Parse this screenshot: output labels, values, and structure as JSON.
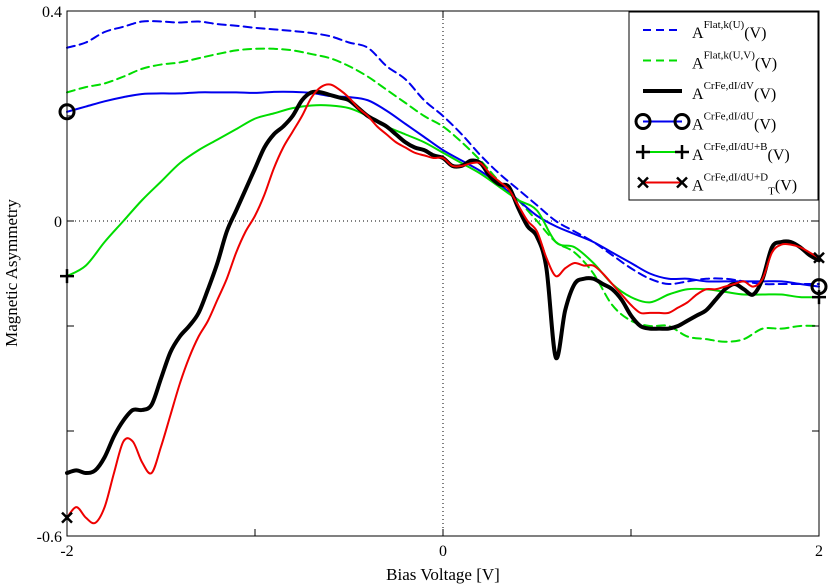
{
  "chart_data": {
    "type": "line",
    "title": "",
    "xlabel": "Bias Voltage [V]",
    "ylabel": "Magnetic Asymmetry",
    "xlim": [
      -2,
      2
    ],
    "ylim": [
      -0.6,
      0.4
    ],
    "xticks": [
      -2,
      0,
      2
    ],
    "xtick_labels": [
      "-2",
      "0",
      "2"
    ],
    "yticks": [
      -0.6,
      0,
      0.4
    ],
    "ytick_labels": [
      "-0.6",
      "0",
      "0.4"
    ],
    "reference_lines": {
      "x": 0,
      "y": 0,
      "style": "dotted"
    },
    "legend_position": "top-right",
    "series": [
      {
        "name": "A^{Flat,k(U)}(V)",
        "legend_main": "A",
        "legend_sup": "Flat,k(U)",
        "legend_sub": "",
        "legend_tail": "(V)",
        "color": "#0000ee",
        "dash": "8,5",
        "width": 2,
        "marker": "",
        "x": [
          -2.0,
          -1.9,
          -1.8,
          -1.7,
          -1.6,
          -1.5,
          -1.4,
          -1.3,
          -1.2,
          -1.1,
          -1.0,
          -0.9,
          -0.8,
          -0.7,
          -0.6,
          -0.5,
          -0.4,
          -0.3,
          -0.2,
          -0.1,
          0.0,
          0.1,
          0.2,
          0.3,
          0.4,
          0.5,
          0.6,
          0.7,
          0.8,
          0.9,
          1.0,
          1.1,
          1.2,
          1.3,
          1.4,
          1.5,
          1.6,
          1.7,
          1.8,
          1.9,
          2.0
        ],
        "values": [
          0.33,
          0.34,
          0.36,
          0.37,
          0.38,
          0.38,
          0.378,
          0.38,
          0.375,
          0.372,
          0.368,
          0.365,
          0.362,
          0.358,
          0.352,
          0.34,
          0.33,
          0.295,
          0.27,
          0.23,
          0.2,
          0.165,
          0.125,
          0.09,
          0.06,
          0.03,
          0.0,
          -0.02,
          -0.04,
          -0.065,
          -0.09,
          -0.11,
          -0.12,
          -0.115,
          -0.11,
          -0.11,
          -0.115,
          -0.12,
          -0.12,
          -0.12,
          -0.12
        ]
      },
      {
        "name": "A^{Flat,k(U,V)}(V)",
        "legend_main": "A",
        "legend_sup": "Flat,k(U,V)",
        "legend_sub": "",
        "legend_tail": "(V)",
        "color": "#00dd00",
        "dash": "8,5",
        "width": 2,
        "marker": "",
        "x": [
          -2.0,
          -1.9,
          -1.8,
          -1.7,
          -1.6,
          -1.5,
          -1.4,
          -1.3,
          -1.2,
          -1.1,
          -1.0,
          -0.9,
          -0.8,
          -0.7,
          -0.6,
          -0.5,
          -0.4,
          -0.3,
          -0.2,
          -0.1,
          0.0,
          0.1,
          0.2,
          0.3,
          0.4,
          0.5,
          0.6,
          0.7,
          0.8,
          0.9,
          1.0,
          1.1,
          1.2,
          1.3,
          1.4,
          1.5,
          1.6,
          1.7,
          1.8,
          1.9,
          2.0
        ],
        "values": [
          0.245,
          0.255,
          0.262,
          0.275,
          0.29,
          0.298,
          0.302,
          0.31,
          0.318,
          0.325,
          0.328,
          0.328,
          0.325,
          0.318,
          0.31,
          0.295,
          0.275,
          0.25,
          0.225,
          0.2,
          0.18,
          0.15,
          0.115,
          0.075,
          0.04,
          0.0,
          -0.04,
          -0.06,
          -0.1,
          -0.16,
          -0.19,
          -0.2,
          -0.2,
          -0.22,
          -0.225,
          -0.23,
          -0.225,
          -0.205,
          -0.205,
          -0.2,
          -0.2
        ]
      },
      {
        "name": "A^{CrFe,dI/dV}(V)",
        "legend_main": "A",
        "legend_sup": "CrFe,dI/dV",
        "legend_sub": "",
        "legend_tail": "(V)",
        "color": "#000000",
        "dash": "",
        "width": 4,
        "marker": "",
        "x": [
          -2.0,
          -1.95,
          -1.9,
          -1.85,
          -1.8,
          -1.75,
          -1.7,
          -1.65,
          -1.6,
          -1.55,
          -1.5,
          -1.45,
          -1.4,
          -1.35,
          -1.3,
          -1.25,
          -1.2,
          -1.15,
          -1.1,
          -1.05,
          -1.0,
          -0.95,
          -0.9,
          -0.85,
          -0.8,
          -0.75,
          -0.7,
          -0.65,
          -0.6,
          -0.55,
          -0.5,
          -0.45,
          -0.4,
          -0.35,
          -0.3,
          -0.25,
          -0.2,
          -0.15,
          -0.1,
          -0.05,
          0.0,
          0.05,
          0.1,
          0.15,
          0.2,
          0.25,
          0.3,
          0.35,
          0.4,
          0.45,
          0.5,
          0.55,
          0.6,
          0.65,
          0.7,
          0.75,
          0.8,
          0.85,
          0.9,
          0.95,
          1.0,
          1.05,
          1.1,
          1.15,
          1.2,
          1.25,
          1.3,
          1.35,
          1.4,
          1.45,
          1.5,
          1.55,
          1.6,
          1.65,
          1.7,
          1.75,
          1.8,
          1.85,
          1.9,
          1.95,
          2.0
        ],
        "values": [
          -0.48,
          -0.475,
          -0.48,
          -0.475,
          -0.45,
          -0.41,
          -0.38,
          -0.36,
          -0.36,
          -0.35,
          -0.3,
          -0.25,
          -0.22,
          -0.2,
          -0.175,
          -0.13,
          -0.08,
          -0.02,
          0.02,
          0.06,
          0.1,
          0.14,
          0.165,
          0.18,
          0.2,
          0.23,
          0.245,
          0.245,
          0.24,
          0.235,
          0.23,
          0.215,
          0.2,
          0.19,
          0.18,
          0.165,
          0.15,
          0.14,
          0.135,
          0.125,
          0.12,
          0.105,
          0.105,
          0.115,
          0.11,
          0.085,
          0.07,
          0.065,
          0.025,
          -0.01,
          -0.03,
          -0.09,
          -0.26,
          -0.17,
          -0.12,
          -0.11,
          -0.11,
          -0.12,
          -0.13,
          -0.15,
          -0.18,
          -0.2,
          -0.205,
          -0.205,
          -0.205,
          -0.2,
          -0.19,
          -0.18,
          -0.17,
          -0.15,
          -0.13,
          -0.12,
          -0.13,
          -0.14,
          -0.11,
          -0.05,
          -0.04,
          -0.04,
          -0.05,
          -0.065,
          -0.075
        ]
      },
      {
        "name": "A^{CrFe,dI/dU}(V)",
        "legend_main": "A",
        "legend_sup": "CrFe,dI/dU",
        "legend_sub": "",
        "legend_tail": "(V)",
        "color": "#0000ee",
        "dash": "",
        "width": 2,
        "marker": "circle",
        "x": [
          -2.0,
          -1.9,
          -1.8,
          -1.7,
          -1.6,
          -1.5,
          -1.4,
          -1.3,
          -1.2,
          -1.1,
          -1.0,
          -0.9,
          -0.8,
          -0.7,
          -0.6,
          -0.5,
          -0.4,
          -0.3,
          -0.2,
          -0.1,
          0.0,
          0.1,
          0.2,
          0.3,
          0.4,
          0.5,
          0.6,
          0.7,
          0.8,
          0.9,
          1.0,
          1.1,
          1.2,
          1.3,
          1.4,
          1.5,
          1.6,
          1.7,
          1.8,
          1.9,
          2.0
        ],
        "values": [
          0.208,
          0.218,
          0.228,
          0.236,
          0.242,
          0.243,
          0.243,
          0.245,
          0.245,
          0.245,
          0.244,
          0.246,
          0.246,
          0.244,
          0.238,
          0.236,
          0.23,
          0.21,
          0.185,
          0.16,
          0.135,
          0.115,
          0.095,
          0.07,
          0.04,
          0.01,
          -0.01,
          -0.025,
          -0.04,
          -0.06,
          -0.08,
          -0.1,
          -0.11,
          -0.11,
          -0.115,
          -0.115,
          -0.115,
          -0.115,
          -0.115,
          -0.12,
          -0.125
        ]
      },
      {
        "name": "A^{CrFe,dI/dU+B}(V)",
        "legend_main": "A",
        "legend_sup": "CrFe,dI/dU+B",
        "legend_sub": "",
        "legend_tail": "(V)",
        "color": "#00dd00",
        "dash": "",
        "width": 2,
        "marker": "plus",
        "x": [
          -2.0,
          -1.9,
          -1.8,
          -1.7,
          -1.6,
          -1.5,
          -1.4,
          -1.3,
          -1.2,
          -1.1,
          -1.0,
          -0.9,
          -0.8,
          -0.7,
          -0.6,
          -0.5,
          -0.4,
          -0.3,
          -0.2,
          -0.1,
          0.0,
          0.1,
          0.2,
          0.3,
          0.4,
          0.5,
          0.6,
          0.7,
          0.8,
          0.9,
          1.0,
          1.1,
          1.2,
          1.3,
          1.4,
          1.5,
          1.6,
          1.7,
          1.8,
          1.9,
          2.0
        ],
        "values": [
          -0.105,
          -0.085,
          -0.04,
          0.0,
          0.04,
          0.075,
          0.11,
          0.135,
          0.155,
          0.175,
          0.195,
          0.205,
          0.215,
          0.22,
          0.22,
          0.215,
          0.2,
          0.18,
          0.165,
          0.15,
          0.13,
          0.11,
          0.09,
          0.065,
          0.04,
          0.02,
          -0.04,
          -0.05,
          -0.08,
          -0.12,
          -0.145,
          -0.155,
          -0.14,
          -0.13,
          -0.13,
          -0.135,
          -0.14,
          -0.14,
          -0.14,
          -0.145,
          -0.145
        ]
      },
      {
        "name": "A^{CrFe,dI/dU+D_T}(V)",
        "legend_main": "A",
        "legend_sup": "CrFe,dI/dU+D",
        "legend_sub": "T",
        "legend_tail": "(V)",
        "color": "#ee0000",
        "dash": "",
        "width": 2,
        "marker": "x",
        "x": [
          -2.0,
          -1.95,
          -1.9,
          -1.85,
          -1.8,
          -1.75,
          -1.7,
          -1.65,
          -1.6,
          -1.55,
          -1.5,
          -1.45,
          -1.4,
          -1.35,
          -1.3,
          -1.25,
          -1.2,
          -1.15,
          -1.1,
          -1.05,
          -1.0,
          -0.95,
          -0.9,
          -0.85,
          -0.8,
          -0.75,
          -0.7,
          -0.65,
          -0.6,
          -0.55,
          -0.5,
          -0.45,
          -0.4,
          -0.35,
          -0.3,
          -0.25,
          -0.2,
          -0.15,
          -0.1,
          -0.05,
          0.0,
          0.05,
          0.1,
          0.15,
          0.2,
          0.25,
          0.3,
          0.35,
          0.4,
          0.45,
          0.5,
          0.55,
          0.6,
          0.65,
          0.7,
          0.75,
          0.8,
          0.85,
          0.9,
          0.95,
          1.0,
          1.05,
          1.1,
          1.15,
          1.2,
          1.25,
          1.3,
          1.35,
          1.4,
          1.45,
          1.5,
          1.55,
          1.6,
          1.65,
          1.7,
          1.75,
          1.8,
          1.85,
          1.9,
          1.95,
          2.0
        ],
        "values": [
          -0.565,
          -0.545,
          -0.565,
          -0.575,
          -0.545,
          -0.48,
          -0.42,
          -0.42,
          -0.46,
          -0.48,
          -0.43,
          -0.37,
          -0.31,
          -0.26,
          -0.22,
          -0.19,
          -0.15,
          -0.11,
          -0.06,
          -0.02,
          0.01,
          0.05,
          0.1,
          0.14,
          0.17,
          0.2,
          0.235,
          0.255,
          0.26,
          0.25,
          0.235,
          0.215,
          0.2,
          0.18,
          0.165,
          0.15,
          0.14,
          0.13,
          0.125,
          0.12,
          0.12,
          0.105,
          0.105,
          0.11,
          0.11,
          0.09,
          0.075,
          0.06,
          0.03,
          0.0,
          -0.02,
          -0.07,
          -0.105,
          -0.09,
          -0.08,
          -0.085,
          -0.085,
          -0.1,
          -0.12,
          -0.14,
          -0.16,
          -0.175,
          -0.175,
          -0.175,
          -0.175,
          -0.165,
          -0.155,
          -0.14,
          -0.13,
          -0.13,
          -0.125,
          -0.12,
          -0.115,
          -0.125,
          -0.11,
          -0.06,
          -0.045,
          -0.045,
          -0.05,
          -0.06,
          -0.07
        ]
      }
    ]
  }
}
